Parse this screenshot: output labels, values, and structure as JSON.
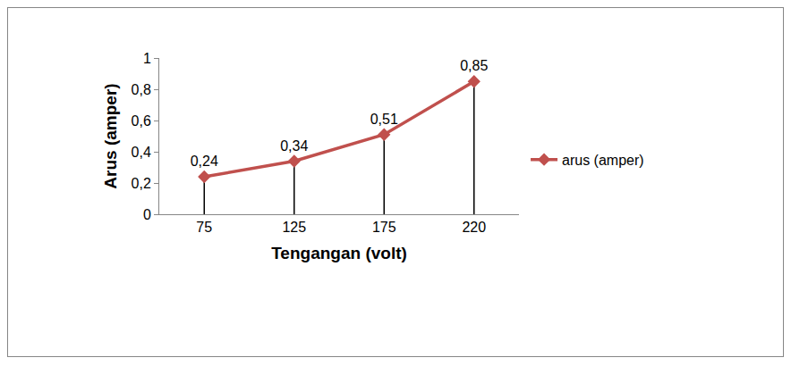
{
  "chart_data": {
    "type": "line",
    "x_label": "Tengangan (volt)",
    "y_label": "Arus (amper)",
    "categories": [
      "75",
      "125",
      "175",
      "220"
    ],
    "series": [
      {
        "name": "arus (amper)",
        "color": "#c0504d",
        "marker": "diamond",
        "values": [
          0.24,
          0.34,
          0.51,
          0.85
        ],
        "value_labels": [
          "0,24",
          "0,34",
          "0,51",
          "0,85"
        ]
      }
    ],
    "ylim": [
      0,
      1
    ],
    "yticks": [
      0,
      {
        "value": 0.2,
        "label": "0,2"
      },
      {
        "value": 0.4,
        "label": "0,4"
      },
      {
        "value": 0.6,
        "label": "0,6"
      },
      {
        "value": 0.8,
        "label": "0,8"
      },
      1
    ],
    "data_labels": true,
    "grid": false,
    "legend": "right"
  }
}
